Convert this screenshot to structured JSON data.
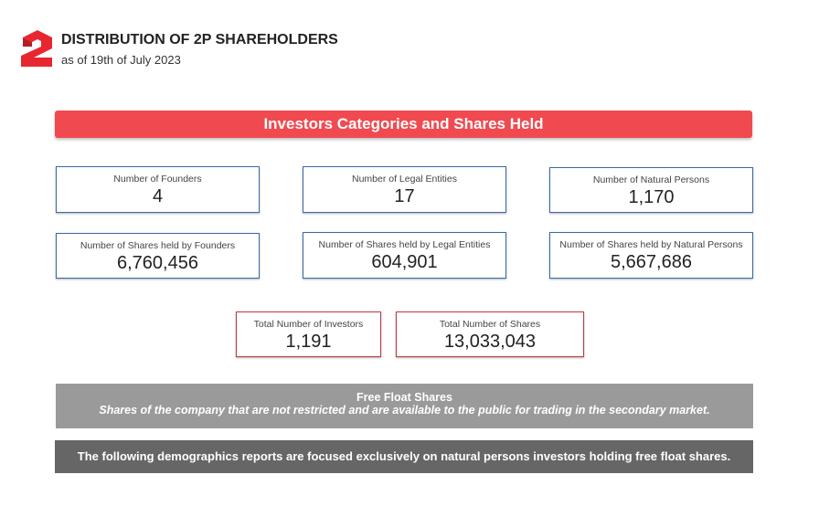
{
  "header": {
    "title": "DISTRIBUTION OF 2P SHAREHOLDERS",
    "subtitle": "as of 19th of July 2023",
    "logo": "2P logo",
    "brand_color": "#e8262f"
  },
  "banner": {
    "title": "Investors Categories and Shares Held",
    "color": "#f04a50"
  },
  "cards": [
    {
      "label": "Number of Founders",
      "value": "4"
    },
    {
      "label": "Number of Legal Entities",
      "value": "17"
    },
    {
      "label": "Number of Natural Persons",
      "value": "1,170"
    },
    {
      "label": "Number of Shares held by Founders",
      "value": "6,760,456"
    },
    {
      "label": "Number of Shares held by Legal Entities",
      "value": "604,901"
    },
    {
      "label": "Number of Shares held by Natural Persons",
      "value": "5,667,686"
    }
  ],
  "totals": [
    {
      "label": "Total Number of Investors",
      "value": "1,191"
    },
    {
      "label": "Total Number of Shares",
      "value": "13,033,043"
    }
  ],
  "free_float": {
    "title": "Free Float Shares",
    "description": "Shares of the company that are not restricted and are available to the public for trading in the secondary market."
  },
  "note": "The following demographics reports are focused exclusively on natural persons investors holding free float shares."
}
